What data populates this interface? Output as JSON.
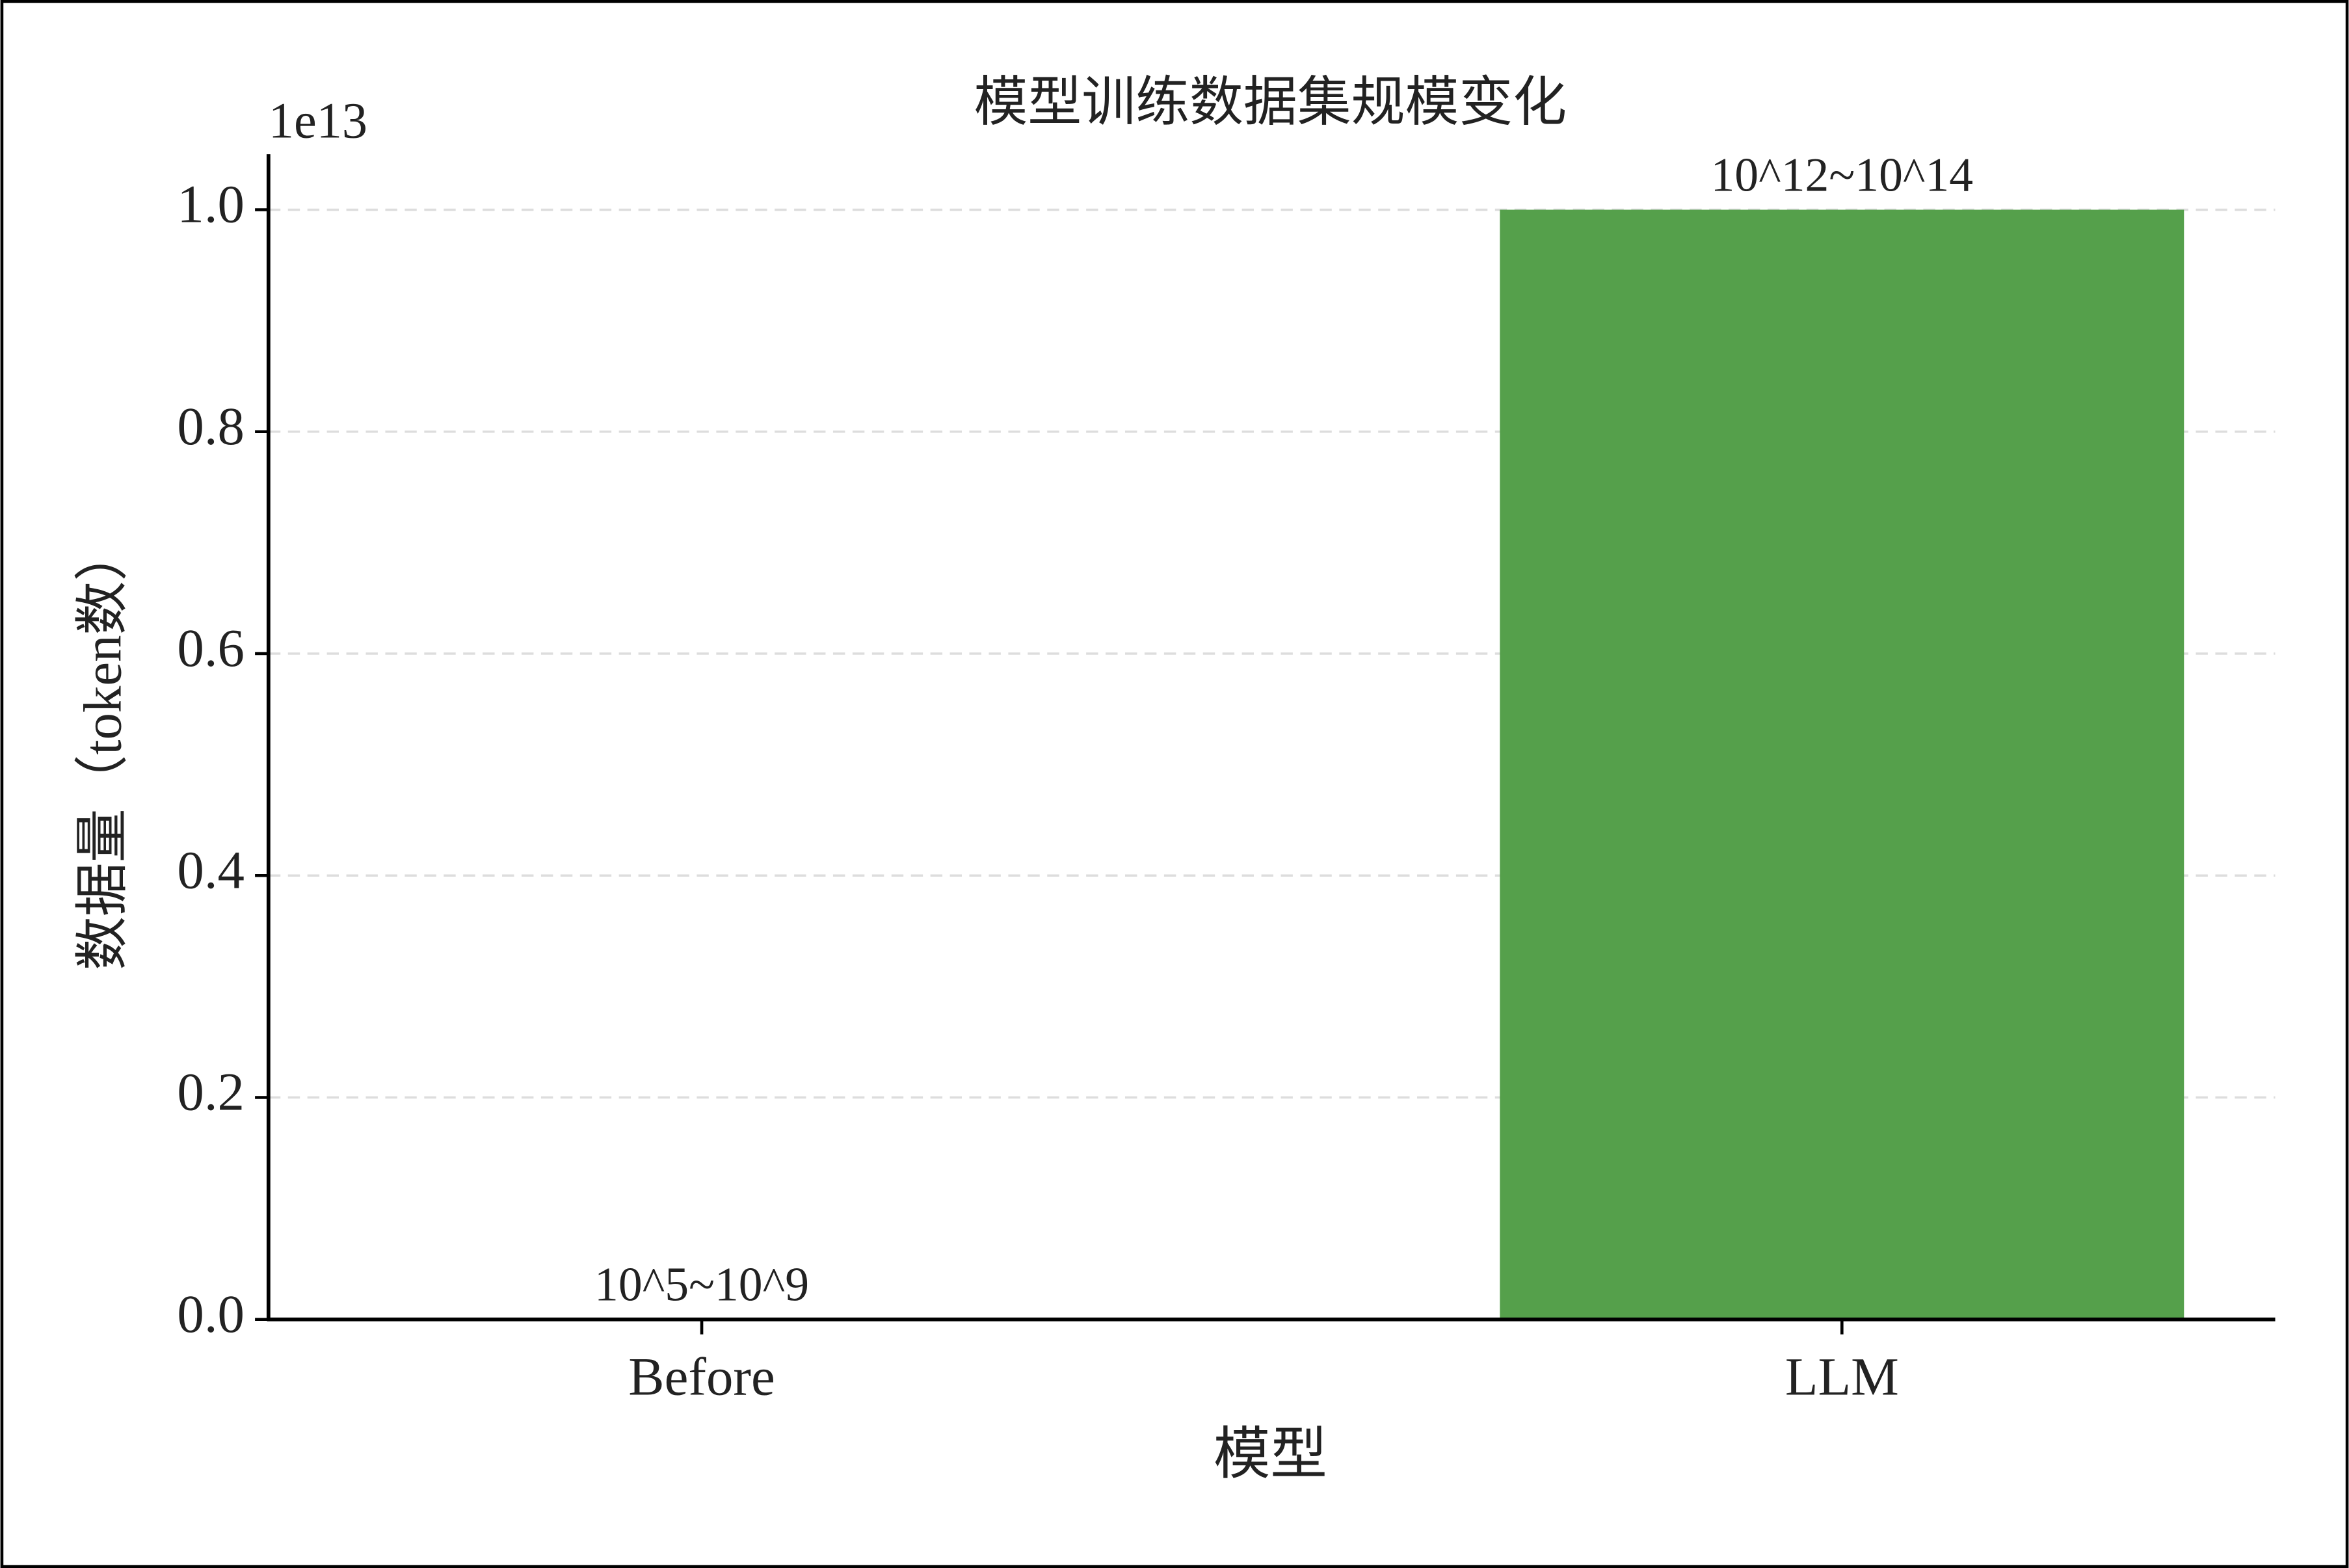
{
  "chart_data": {
    "type": "bar",
    "title": "模型训练数据集规模变化",
    "x_label": "模型",
    "y_label": "数据量（token数）",
    "y_offset_label": "1e13",
    "categories": [
      "Before",
      "LLM"
    ],
    "values": [
      1000000000,
      10000000000000
    ],
    "value_labels": [
      "10^5~10^9",
      "10^12~10^14"
    ],
    "colors": [
      "#4c72b0",
      "#55a04b"
    ],
    "ylim": [
      0,
      10500000000000
    ],
    "yticks": [
      {
        "value": 0,
        "label": "0.0"
      },
      {
        "value": 2000000000000,
        "label": "0.2"
      },
      {
        "value": 4000000000000,
        "label": "0.4"
      },
      {
        "value": 6000000000000,
        "label": "0.6"
      },
      {
        "value": 8000000000000,
        "label": "0.8"
      },
      {
        "value": 10000000000000,
        "label": "1.0"
      }
    ],
    "grid": true
  }
}
